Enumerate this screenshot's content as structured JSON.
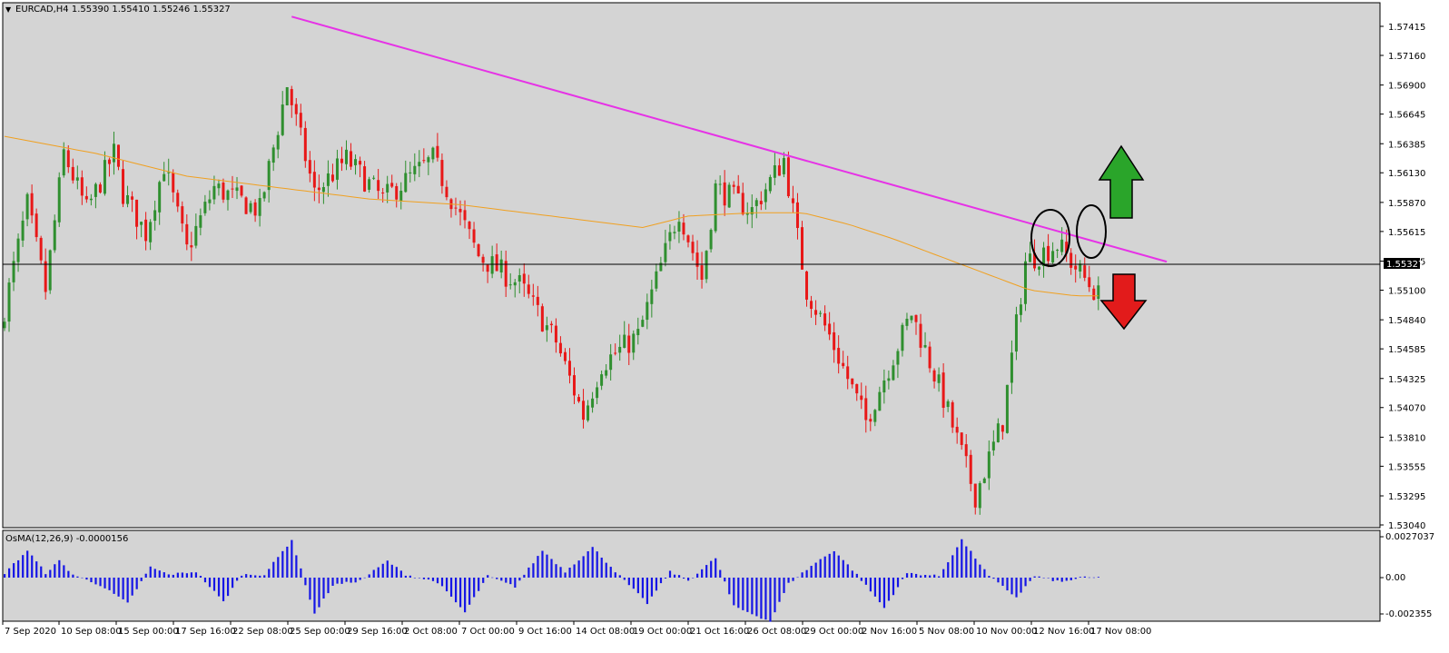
{
  "main_header": {
    "marker": "▼",
    "text": "EURCAD,H4  1.55390 1.55410 1.55246 1.55327"
  },
  "osma_header": {
    "text": "OsMA(12,26,9) -0.0000156"
  },
  "price_axis": {
    "ticks": [
      "1.57415",
      "1.57160",
      "1.56900",
      "1.56645",
      "1.56385",
      "1.56130",
      "1.55870",
      "1.55615",
      "1.55355",
      "1.55100",
      "1.54840",
      "1.54585",
      "1.54325",
      "1.54070",
      "1.53810",
      "1.53555",
      "1.53295",
      "1.53040"
    ],
    "current_label": "1.55327"
  },
  "osma_axis": {
    "ticks": [
      "0.0027037",
      "0.00",
      "-0.002355"
    ]
  },
  "time_axis": {
    "ticks": [
      "7 Sep 2020",
      "10 Sep 08:00",
      "15 Sep 00:00",
      "17 Sep 16:00",
      "22 Sep 08:00",
      "25 Sep 00:00",
      "29 Sep 16:00",
      "2 Oct 08:00",
      "7 Oct 00:00",
      "9 Oct 16:00",
      "14 Oct 08:00",
      "19 Oct 00:00",
      "21 Oct 16:00",
      "26 Oct 08:00",
      "29 Oct 00:00",
      "2 Nov 16:00",
      "5 Nov 08:00",
      "10 Nov 00:00",
      "12 Nov 16:00",
      "17 Nov 08:00"
    ]
  },
  "colors": {
    "background": "#d4d4d4",
    "bull": "#2f8f2f",
    "bear": "#e81818",
    "ma": "#f0a020",
    "trendline": "#e632e6",
    "osma": "#1515e6",
    "arrow_up": "#2aa52a",
    "arrow_down": "#e21b1b"
  },
  "chart_data": [
    {
      "type": "candlestick",
      "symbol": "EURCAD",
      "timeframe": "H4",
      "ylim": [
        1.5292,
        1.5752
      ],
      "last_price": 1.55327,
      "price_path": {
        "description": "approximate close path of the H4 candles (x index 0..240 candles)",
        "x": [
          0,
          6,
          10,
          14,
          19,
          25,
          27,
          32,
          36,
          41,
          47,
          57,
          63,
          69,
          76,
          84,
          95,
          105,
          114,
          122,
          128,
          132,
          140,
          149,
          154,
          157,
          165,
          172,
          177,
          182,
          190,
          200,
          207,
          214,
          220,
          225,
          232,
          241
        ],
        "y": [
          1.5475,
          1.5585,
          1.551,
          1.563,
          1.558,
          1.563,
          1.5595,
          1.556,
          1.562,
          1.5545,
          1.56,
          1.558,
          1.569,
          1.5595,
          1.5625,
          1.559,
          1.5625,
          1.554,
          1.5515,
          1.5465,
          1.54,
          1.5445,
          1.547,
          1.558,
          1.552,
          1.56,
          1.558,
          1.5625,
          1.551,
          1.547,
          1.5395,
          1.549,
          1.5415,
          1.533,
          1.5395,
          1.5535,
          1.555,
          1.5505
        ]
      },
      "moving_average": {
        "color": "orange",
        "x": [
          0,
          20,
          40,
          60,
          80,
          100,
          120,
          140,
          150,
          165,
          175,
          185,
          195,
          205,
          215,
          225,
          235,
          240
        ],
        "y": [
          1.5645,
          1.563,
          1.561,
          1.56,
          1.559,
          1.5585,
          1.5575,
          1.5565,
          1.5575,
          1.5578,
          1.5578,
          1.5568,
          1.5555,
          1.554,
          1.5525,
          1.551,
          1.5505,
          1.5505
        ]
      },
      "trendline": {
        "x": [
          63,
          255
        ],
        "y": [
          1.575,
          1.5535
        ]
      },
      "current_price_line": 1.55327,
      "annotations": [
        "ellipse around highs near 12 Nov",
        "ellipse around high near 17 Nov",
        "green up arrow",
        "red down arrow"
      ]
    },
    {
      "type": "bar",
      "name": "OsMA(12,26,9)",
      "last_value": -1.56e-05,
      "ylim": [
        -0.002355,
        0.0027037
      ],
      "profile_x": [
        0,
        5,
        9,
        12,
        15,
        21,
        27,
        32,
        36,
        42,
        48,
        52,
        57,
        63,
        68,
        72,
        78,
        84,
        88,
        95,
        101,
        106,
        112,
        118,
        123,
        129,
        135,
        141,
        146,
        150,
        156,
        160,
        168,
        172,
        178,
        182,
        187,
        193,
        198,
        205,
        210,
        216,
        222,
        226,
        232,
        236,
        240
      ],
      "profile_y": [
        0.0003,
        0.0018,
        0.0003,
        0.0011,
        0.0002,
        -0.0005,
        -0.0017,
        0.0007,
        0.0002,
        0.0004,
        -0.0016,
        0.0002,
        0.0002,
        0.0025,
        -0.0024,
        -0.0005,
        -0.0002,
        0.0011,
        0.0002,
        -0.0003,
        -0.0023,
        0.0001,
        -0.0006,
        0.0018,
        0.0004,
        0.002,
        0.0001,
        -0.0017,
        0.0004,
        -0.0002,
        0.0013,
        -0.0019,
        -0.0029,
        -0.0004,
        0.001,
        0.0018,
        0.0002,
        -0.002,
        0.0003,
        0.0001,
        0.0025,
        0.0001,
        -0.0013,
        0.0001,
        -0.0003,
        0.0,
        0.0
      ]
    }
  ]
}
